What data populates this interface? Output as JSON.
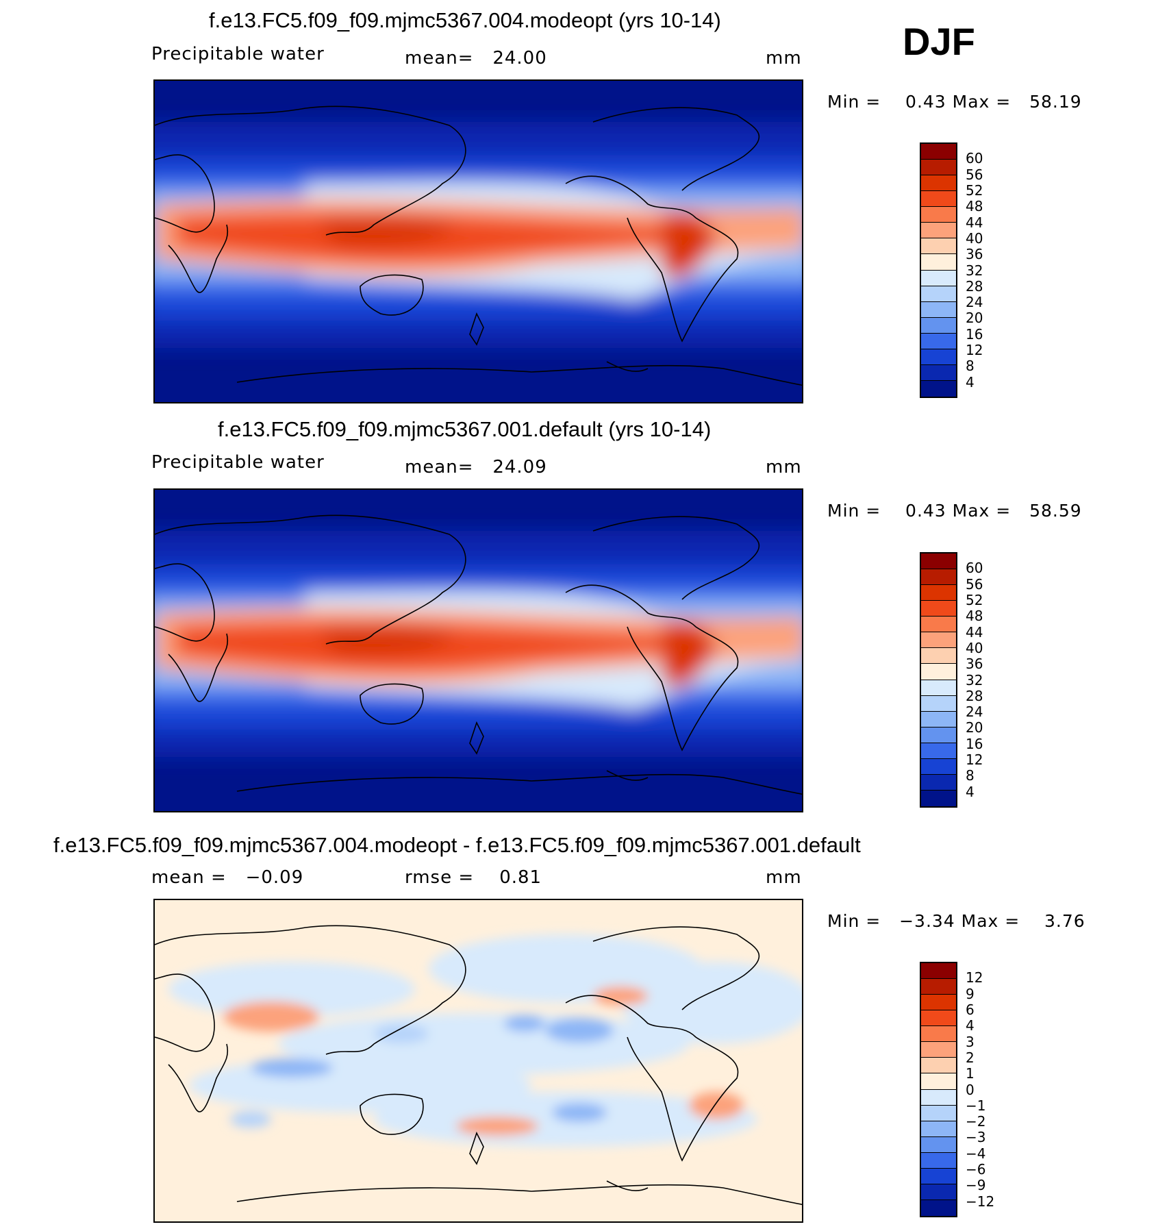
{
  "season": "DJF",
  "panels": [
    {
      "title": "f.e13.FC5.f09_f09.mjmc5367.004.modeopt (yrs 10-14)",
      "variable": "Precipitable water",
      "stat": "mean=   24.00",
      "units": "mm",
      "minmax": "Min =    0.43 Max =   58.19",
      "colorbar": {
        "labels": [
          "60",
          "56",
          "52",
          "48",
          "44",
          "40",
          "36",
          "32",
          "28",
          "24",
          "20",
          "16",
          "12",
          "8",
          "4"
        ],
        "colors": [
          "#8b0000",
          "#b71c00",
          "#dc3400",
          "#f04a1a",
          "#f97a4a",
          "#fca27b",
          "#fdd0b0",
          "#fff0dc",
          "#d8eafc",
          "#b5d3fa",
          "#8db6f6",
          "#6393ef",
          "#3869ea",
          "#1743d4",
          "#0a28b0",
          "#00138a"
        ]
      }
    },
    {
      "title": "f.e13.FC5.f09_f09.mjmc5367.001.default (yrs 10-14)",
      "variable": "Precipitable water",
      "stat": "mean=   24.09",
      "units": "mm",
      "minmax": "Min =    0.43 Max =   58.59",
      "colorbar": {
        "labels": [
          "60",
          "56",
          "52",
          "48",
          "44",
          "40",
          "36",
          "32",
          "28",
          "24",
          "20",
          "16",
          "12",
          "8",
          "4"
        ],
        "colors": [
          "#8b0000",
          "#b71c00",
          "#dc3400",
          "#f04a1a",
          "#f97a4a",
          "#fca27b",
          "#fdd0b0",
          "#fff0dc",
          "#d8eafc",
          "#b5d3fa",
          "#8db6f6",
          "#6393ef",
          "#3869ea",
          "#1743d4",
          "#0a28b0",
          "#00138a"
        ]
      }
    },
    {
      "title": "f.e13.FC5.f09_f09.mjmc5367.004.modeopt - f.e13.FC5.f09_f09.mjmc5367.001.default",
      "stat_left": "mean =   −0.09",
      "stat_mid": "rmse =    0.81",
      "units": "mm",
      "minmax": "Min =   −3.34 Max =    3.76",
      "colorbar": {
        "labels": [
          "12",
          "9",
          "6",
          "4",
          "3",
          "2",
          "1",
          "0",
          "−1",
          "−2",
          "−3",
          "−4",
          "−6",
          "−9",
          "−12"
        ],
        "colors": [
          "#8b0000",
          "#b71c00",
          "#dc3400",
          "#f04a1a",
          "#f97a4a",
          "#fca27b",
          "#fdd0b0",
          "#fff0dc",
          "#d8eafc",
          "#b5d3fa",
          "#8db6f6",
          "#6393ef",
          "#3869ea",
          "#1743d4",
          "#0a28b0",
          "#00138a"
        ]
      }
    }
  ]
}
